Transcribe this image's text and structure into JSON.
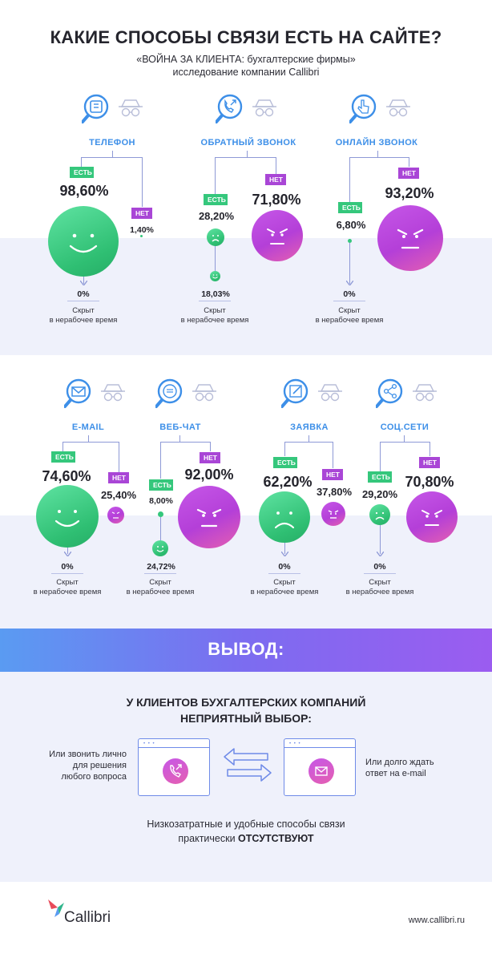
{
  "header": {
    "title": "КАКИЕ СПОСОБЫ СВЯЗИ ЕСТЬ НА САЙТЕ?",
    "subtitle_line1": "«ВОЙНА ЗА КЛИЕНТА: бухгалтерские фирмы»",
    "subtitle_line2": "исследование компании Callibri"
  },
  "labels": {
    "yes": "ЕСТЬ",
    "no": "НЕТ",
    "hidden_line1": "Скрыт",
    "hidden_line2": "в нерабочее время"
  },
  "channels": [
    {
      "name": "ТЕЛЕФОН",
      "yes": "98,60%",
      "no": "1,40%",
      "hidden": "0%",
      "icon": "phone-icon"
    },
    {
      "name": "ОБРАТНЫЙ ЗВОНОК",
      "yes": "28,20%",
      "no": "71,80%",
      "hidden": "18,03%",
      "icon": "callback-icon"
    },
    {
      "name": "ОНЛАЙН ЗВОНОК",
      "yes": "6,80%",
      "no": "93,20%",
      "hidden": "0%",
      "icon": "click-icon"
    },
    {
      "name": "E-MAIL",
      "yes": "74,60%",
      "no": "25,40%",
      "hidden": "0%",
      "icon": "mail-icon"
    },
    {
      "name": "ВЕБ-ЧАТ",
      "yes": "8,00%",
      "no": "92,00%",
      "hidden": "24,72%",
      "icon": "chat-icon"
    },
    {
      "name": "ЗАЯВКА",
      "yes": "62,20%",
      "no": "37,80%",
      "hidden": "0%",
      "icon": "form-icon"
    },
    {
      "name": "СОЦ.СЕТИ",
      "yes": "29,20%",
      "no": "70,80%",
      "hidden": "0%",
      "icon": "share-icon"
    }
  ],
  "chart_data": {
    "type": "bar",
    "categories": [
      "ТЕЛЕФОН",
      "ОБРАТНЫЙ ЗВОНОК",
      "ОНЛАЙН ЗВОНОК",
      "E-MAIL",
      "ВЕБ-ЧАТ",
      "ЗАЯВКА",
      "СОЦ.СЕТИ"
    ],
    "series": [
      {
        "name": "ЕСТЬ",
        "values": [
          98.6,
          28.2,
          6.8,
          74.6,
          8.0,
          62.2,
          29.2
        ]
      },
      {
        "name": "НЕТ",
        "values": [
          1.4,
          71.8,
          93.2,
          25.4,
          92.0,
          37.8,
          70.8
        ]
      }
    ],
    "hidden_outside_hours": [
      0,
      18.03,
      0,
      0,
      24.72,
      0,
      0
    ]
  },
  "conclusion": {
    "heading": "ВЫВОД:",
    "line1": "У КЛИЕНТОВ БУХГАЛТЕРСКИХ КОМПАНИЙ",
    "line2": "НЕПРИЯТНЫЙ ВЫБОР:",
    "left_1": "Или звонить лично",
    "left_2": "для решения",
    "left_3": "любого вопроса",
    "right_1": "Или долго ждать",
    "right_2": "ответ  на e-mail",
    "bottom_1": "Низкозатратные и удобные способы связи",
    "bottom_2a": "практически ",
    "bottom_2b": "ОТСУТСТВУЮТ"
  },
  "footer": {
    "brand": "Callibri",
    "url": "www.callibri.ru"
  },
  "colors": {
    "green": "#35c77c",
    "purple": "#b43fd8",
    "blue_label": "#3d8fe8",
    "band": "#eff1fb"
  }
}
